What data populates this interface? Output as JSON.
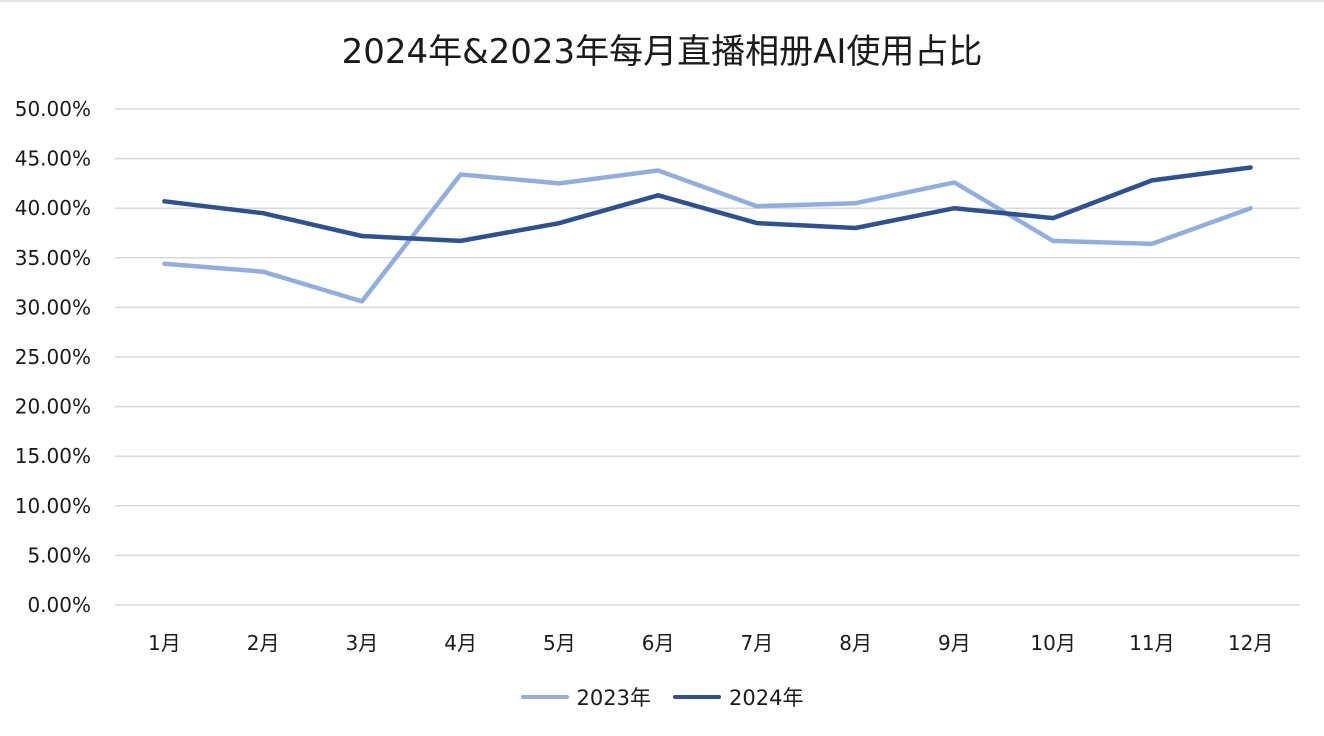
{
  "chart_data": {
    "type": "line",
    "title": "2024年&2023年每月直播相册AI使用占比",
    "categories": [
      "1月",
      "2月",
      "3月",
      "4月",
      "5月",
      "6月",
      "7月",
      "8月",
      "9月",
      "10月",
      "11月",
      "12月"
    ],
    "series": [
      {
        "name": "2023年",
        "color": "#94aedb",
        "values": [
          34.4,
          33.6,
          30.6,
          43.4,
          42.5,
          43.8,
          40.2,
          40.5,
          42.6,
          36.7,
          36.4,
          40.0
        ]
      },
      {
        "name": "2024年",
        "color": "#2f528f",
        "values": [
          40.7,
          39.5,
          37.2,
          36.7,
          38.5,
          41.3,
          38.5,
          38.0,
          40.0,
          39.0,
          42.8,
          44.1
        ]
      }
    ],
    "ylim": [
      0,
      50
    ],
    "yticks": [
      "0.00%",
      "5.00%",
      "10.00%",
      "15.00%",
      "20.00%",
      "25.00%",
      "30.00%",
      "35.00%",
      "40.00%",
      "45.00%",
      "50.00%"
    ],
    "ytick_values": [
      0,
      5,
      10,
      15,
      20,
      25,
      30,
      35,
      40,
      45,
      50
    ],
    "xlabel": "",
    "ylabel": "",
    "grid": true,
    "legend_position": "bottom-center"
  }
}
